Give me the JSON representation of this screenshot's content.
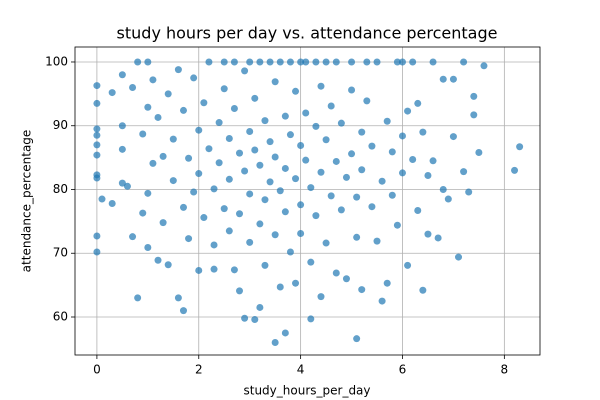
{
  "chart_data": {
    "type": "scatter",
    "title": "study hours per day vs. attendance percentage",
    "x_label": "study_hours_per_day",
    "y_label": "attendance_percentage",
    "color": "#1f77b4",
    "grid": true,
    "xlim": [
      -0.43,
      8.7
    ],
    "ylim": [
      54.04,
      102.35
    ],
    "xticks": [
      0,
      2,
      4,
      6,
      8
    ],
    "yticks": [
      60,
      70,
      80,
      90,
      100
    ],
    "x": [
      0,
      0,
      0,
      0,
      0,
      0,
      0,
      0,
      0,
      0,
      0.1,
      0.3,
      0.3,
      0.5,
      0.5,
      0.5,
      0.5,
      0.6,
      0.7,
      0.7,
      0.8,
      0.8,
      0.9,
      0.9,
      1,
      1,
      1,
      1,
      1.1,
      1.1,
      1.2,
      1.2,
      1.3,
      1.3,
      1.4,
      1.4,
      1.5,
      1.5,
      1.6,
      1.6,
      1.7,
      1.7,
      1.7,
      1.8,
      1.8,
      1.9,
      1.9,
      2,
      2,
      2,
      2.1,
      2.1,
      2.2,
      2.2,
      2.3,
      2.3,
      2.3,
      2.4,
      2.4,
      2.5,
      2.5,
      2.5,
      2.6,
      2.6,
      2.6,
      2.7,
      2.7,
      2.7,
      2.8,
      2.8,
      2.8,
      2.9,
      2.9,
      2.9,
      3,
      3,
      3,
      3,
      3.1,
      3.1,
      3.1,
      3.2,
      3.2,
      3.2,
      3.2,
      3.3,
      3.3,
      3.3,
      3.4,
      3.4,
      3.4,
      3.5,
      3.5,
      3.5,
      3.5,
      3.6,
      3.6,
      3.6,
      3.7,
      3.7,
      3.7,
      3.7,
      3.8,
      3.8,
      3.8,
      3.9,
      3.9,
      3.9,
      4,
      4,
      4,
      4,
      4.1,
      4.1,
      4.1,
      4.2,
      4.2,
      4.2,
      4.3,
      4.3,
      4.3,
      4.4,
      4.4,
      4.4,
      4.5,
      4.5,
      4.5,
      4.6,
      4.6,
      4.7,
      4.7,
      4.7,
      4.8,
      4.8,
      4.9,
      4.9,
      5,
      5,
      5,
      5.1,
      5.1,
      5.1,
      5.2,
      5.2,
      5.2,
      5.3,
      5.3,
      5.4,
      5.4,
      5.5,
      5.5,
      5.6,
      5.6,
      5.7,
      5.7,
      5.8,
      5.8,
      5.9,
      5.9,
      6,
      6,
      6,
      6.1,
      6.1,
      6.2,
      6.2,
      6.3,
      6.3,
      6.4,
      6.4,
      6.5,
      6.5,
      6.6,
      6.6,
      6.7,
      6.8,
      6.8,
      6.9,
      7,
      7,
      7.1,
      7.2,
      7.2,
      7.3,
      7.4,
      7.4,
      7.5,
      7.6,
      8.2,
      8.3
    ],
    "values": [
      70.2,
      72.7,
      81.8,
      82.3,
      85.4,
      87,
      88.5,
      89.5,
      93.5,
      96.3,
      78.5,
      77.8,
      95.2,
      81,
      86.3,
      90,
      98,
      80.5,
      96,
      72.6,
      63,
      100,
      76.3,
      88.7,
      92.9,
      70.9,
      79.4,
      100,
      97.2,
      84.1,
      68.9,
      91.3,
      85.2,
      74.8,
      95,
      68.2,
      81.4,
      87.9,
      63,
      98.8,
      61,
      77.2,
      92.4,
      72.3,
      84.9,
      97.5,
      79.6,
      67.3,
      89.3,
      82.5,
      75.6,
      93.6,
      100,
      86.4,
      71.3,
      80.1,
      67.5,
      90.5,
      84.2,
      100,
      77,
      95.8,
      73.5,
      88,
      81.6,
      67.4,
      92.7,
      100,
      85.7,
      76.2,
      64.1,
      98.6,
      82.9,
      59.8,
      89.1,
      71.7,
      100,
      79.3,
      86.2,
      59.6,
      94.3,
      74.6,
      100,
      83.8,
      61.5,
      90.8,
      78.4,
      68.1,
      100,
      87.5,
      81.2,
      56,
      96.9,
      72.9,
      85.1,
      100,
      79.8,
      64.7,
      57.5,
      91.5,
      83.3,
      76.5,
      100,
      88.6,
      70.2,
      95.4,
      81.7,
      65.3,
      100,
      86.9,
      77.6,
      73.1,
      92,
      84.6,
      100,
      80.3,
      68.6,
      59.7,
      89.9,
      100,
      75.9,
      82.7,
      96.2,
      63.2,
      87.8,
      71.6,
      100,
      79,
      93.1,
      84.4,
      66.9,
      100,
      90.4,
      76.8,
      81.9,
      66,
      95.6,
      100,
      85.6,
      56.6,
      78.8,
      72.5,
      89,
      83.1,
      64.3,
      93.9,
      100,
      77.3,
      86.8,
      71.9,
      100,
      81.3,
      62.5,
      90.7,
      65.3,
      85.9,
      79.1,
      100,
      74.4,
      88.4,
      82.6,
      100,
      92.3,
      68.1,
      84.7,
      100,
      76.7,
      93.5,
      64.2,
      89,
      73,
      82.2,
      100,
      84.5,
      72.4,
      80,
      97.3,
      78.5,
      88.3,
      97.3,
      69.4,
      82.8,
      100,
      79.6,
      91.7,
      94.6,
      85.8,
      99.4,
      83,
      86.7
    ]
  }
}
